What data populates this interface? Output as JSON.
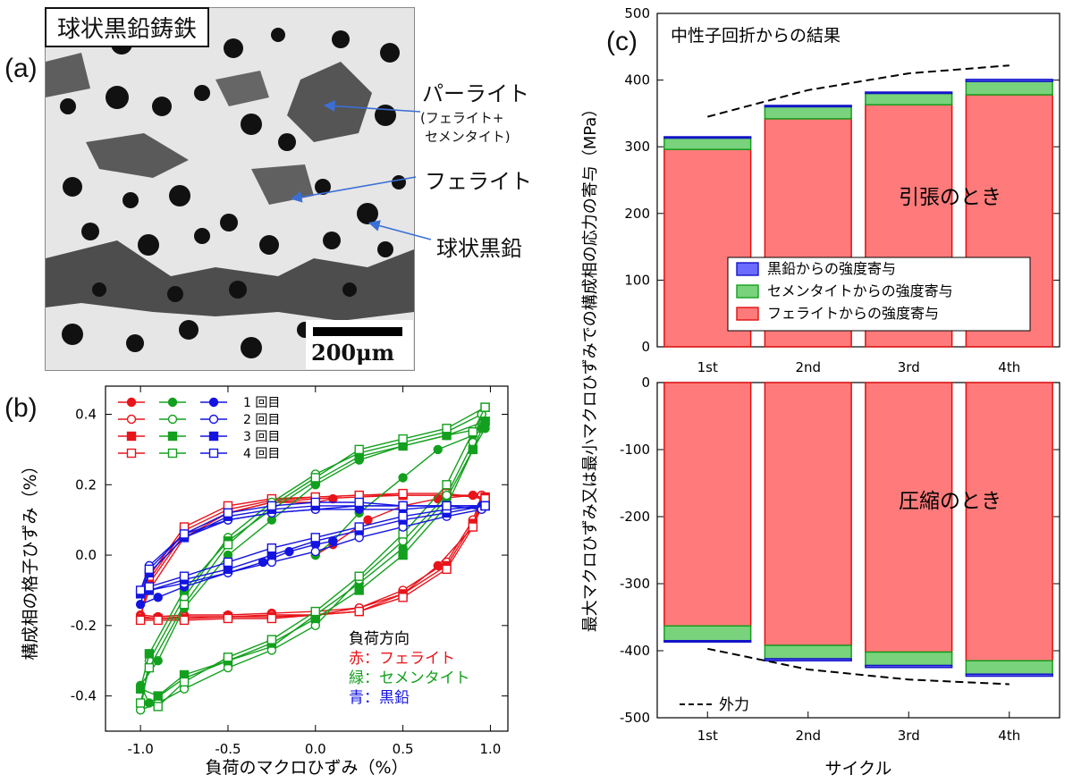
{
  "panel_a": {
    "label": "(a)",
    "title": "球状黒鉛鋳鉄",
    "scale_bar": "200μm",
    "annotations": {
      "pearlite": "パーライト",
      "pearlite_detail_1": "(フェライト+",
      "pearlite_detail_2": "セメンタイト)",
      "ferrite": "フェライト",
      "graphite": "球状黒鉛"
    }
  },
  "panel_b": {
    "label": "(b)",
    "load_direction_title": "負荷方向",
    "phase_legend": [
      {
        "text": "赤：フェライト",
        "color": "#e8141b"
      },
      {
        "text": "緑：セメンタイト",
        "color": "#13a01e"
      },
      {
        "text": "青：黒鉛",
        "color": "#1414e0"
      }
    ]
  },
  "panel_c": {
    "label": "(c)",
    "title_text": "中性子回折からの結果",
    "tension_label": "引張のとき",
    "compression_label": "圧縮のとき",
    "external_force_label": "外力"
  },
  "chart_data": [
    {
      "type": "line",
      "xlabel": "負荷のマクロひずみ（%）",
      "ylabel": "構成相の格子ひずみ（%）",
      "xlim": [
        -1.2,
        1.1
      ],
      "ylim": [
        -0.5,
        0.48
      ],
      "xticks": [
        -1.0,
        -0.5,
        0.0,
        0.5,
        1.0
      ],
      "xtick_labels": [
        "-1.0",
        "-0.5",
        "0.0",
        "0.5",
        "1.0"
      ],
      "yticks": [
        -0.4,
        -0.2,
        0.0,
        0.2,
        0.4
      ],
      "ytick_labels": [
        "-0.4",
        "-0.2",
        "0.0",
        "0.2",
        "0.4"
      ],
      "cycle_legend": [
        "1 回目",
        "2 回目",
        "3 回目",
        "4 回目"
      ],
      "colors": {
        "ferrite": "#e8141b",
        "cementite": "#13a01e",
        "graphite": "#1414e0"
      },
      "series": [
        {
          "phase": "ferrite",
          "cycle": 1,
          "marker": "circle",
          "filled": true,
          "x": [
            0.0,
            0.1,
            0.3,
            0.5,
            0.7,
            0.9,
            0.95,
            0.9,
            0.7,
            0.5,
            0.25,
            0.0,
            -0.25,
            -0.5,
            -0.75,
            -0.9,
            -1.0,
            -0.95,
            -0.75,
            -0.5,
            -0.25,
            0.0,
            0.1
          ],
          "y": [
            0.0,
            0.03,
            0.1,
            0.14,
            0.16,
            0.17,
            0.17,
            0.08,
            -0.03,
            -0.11,
            -0.15,
            -0.16,
            -0.165,
            -0.17,
            -0.17,
            -0.175,
            -0.17,
            -0.1,
            0.05,
            0.12,
            0.15,
            0.15,
            0.16
          ]
        },
        {
          "phase": "ferrite",
          "cycle": 2,
          "marker": "circle",
          "filled": false,
          "x": [
            0.95,
            0.9,
            0.75,
            0.5,
            0.25,
            0.0,
            -0.25,
            -0.5,
            -0.75,
            -0.9,
            -1.0,
            -0.95,
            -0.75,
            -0.5,
            -0.25,
            0.0,
            0.25,
            0.5,
            0.75,
            0.95
          ],
          "y": [
            0.17,
            0.1,
            -0.02,
            -0.1,
            -0.15,
            -0.17,
            -0.17,
            -0.175,
            -0.175,
            -0.18,
            -0.175,
            -0.08,
            0.06,
            0.12,
            0.15,
            0.16,
            0.165,
            0.17,
            0.17,
            0.17
          ]
        },
        {
          "phase": "ferrite",
          "cycle": 3,
          "marker": "square",
          "filled": true,
          "x": [
            0.97,
            0.9,
            0.75,
            0.5,
            0.25,
            0.0,
            -0.25,
            -0.5,
            -0.75,
            -0.9,
            -1.0,
            -0.95,
            -0.75,
            -0.5,
            -0.25,
            0.0,
            0.25,
            0.5,
            0.75,
            0.97
          ],
          "y": [
            0.165,
            0.09,
            -0.03,
            -0.11,
            -0.16,
            -0.17,
            -0.175,
            -0.175,
            -0.18,
            -0.18,
            -0.18,
            -0.07,
            0.07,
            0.13,
            0.155,
            0.165,
            0.17,
            0.17,
            0.17,
            0.165
          ]
        },
        {
          "phase": "ferrite",
          "cycle": 4,
          "marker": "square",
          "filled": false,
          "x": [
            0.97,
            0.9,
            0.75,
            0.5,
            0.25,
            0.0,
            -0.25,
            -0.5,
            -0.75,
            -0.9,
            -1.0,
            -0.95,
            -0.75,
            -0.5,
            -0.25,
            0.0,
            0.25,
            0.5,
            0.75,
            0.97
          ],
          "y": [
            0.16,
            0.08,
            -0.04,
            -0.12,
            -0.16,
            -0.17,
            -0.18,
            -0.18,
            -0.185,
            -0.185,
            -0.185,
            -0.06,
            0.08,
            0.14,
            0.16,
            0.165,
            0.17,
            0.175,
            0.175,
            0.16
          ]
        },
        {
          "phase": "cementite",
          "cycle": 1,
          "marker": "circle",
          "filled": true,
          "x": [
            0.0,
            0.1,
            0.25,
            0.5,
            0.7,
            0.9,
            0.97,
            0.9,
            0.75,
            0.5,
            0.25,
            0.0,
            -0.25,
            -0.5,
            -0.75,
            -0.95,
            -1.0,
            -0.9,
            -0.75,
            -0.5,
            -0.25,
            0.0,
            0.25,
            0.5,
            0.75,
            0.95
          ],
          "y": [
            0.0,
            0.04,
            0.12,
            0.22,
            0.3,
            0.34,
            0.36,
            0.3,
            0.16,
            0.02,
            -0.08,
            -0.17,
            -0.26,
            -0.3,
            -0.35,
            -0.42,
            -0.37,
            -0.3,
            -0.15,
            0.0,
            0.1,
            0.2,
            0.27,
            0.31,
            0.34,
            0.36
          ]
        },
        {
          "phase": "cementite",
          "cycle": 2,
          "marker": "circle",
          "filled": false,
          "x": [
            0.95,
            0.9,
            0.75,
            0.5,
            0.25,
            0.0,
            -0.25,
            -0.5,
            -0.75,
            -0.9,
            -1.0,
            -0.95,
            -0.75,
            -0.5,
            -0.25,
            0.0,
            0.25,
            0.5,
            0.75,
            0.95
          ],
          "y": [
            0.4,
            0.32,
            0.17,
            0.04,
            -0.07,
            -0.2,
            -0.27,
            -0.32,
            -0.38,
            -0.42,
            -0.44,
            -0.3,
            -0.12,
            0.05,
            0.15,
            0.23,
            0.29,
            0.32,
            0.35,
            0.4
          ]
        },
        {
          "phase": "cementite",
          "cycle": 3,
          "marker": "square",
          "filled": true,
          "x": [
            0.97,
            0.9,
            0.75,
            0.5,
            0.25,
            0.0,
            -0.25,
            -0.5,
            -0.75,
            -0.9,
            -1.0,
            -0.95,
            -0.75,
            -0.5,
            -0.25,
            0.0,
            0.25,
            0.5,
            0.75,
            0.97
          ],
          "y": [
            0.38,
            0.3,
            0.14,
            0.0,
            -0.1,
            -0.18,
            -0.25,
            -0.3,
            -0.34,
            -0.4,
            -0.38,
            -0.28,
            -0.1,
            0.04,
            0.13,
            0.21,
            0.28,
            0.31,
            0.34,
            0.38
          ]
        },
        {
          "phase": "cementite",
          "cycle": 4,
          "marker": "square",
          "filled": false,
          "x": [
            0.97,
            0.9,
            0.75,
            0.5,
            0.25,
            0.0,
            -0.25,
            -0.5,
            -0.75,
            -0.9,
            -1.0,
            -0.95,
            -0.75,
            -0.5,
            -0.25,
            0.0,
            0.25,
            0.5,
            0.75,
            0.97
          ],
          "y": [
            0.42,
            0.35,
            0.2,
            0.06,
            -0.06,
            -0.16,
            -0.24,
            -0.29,
            -0.36,
            -0.43,
            -0.42,
            -0.32,
            -0.14,
            0.03,
            0.14,
            0.22,
            0.3,
            0.33,
            0.36,
            0.42
          ]
        },
        {
          "phase": "graphite",
          "cycle": 1,
          "marker": "circle",
          "filled": true,
          "x": [
            0.1,
            0.0,
            -0.15,
            -0.3,
            -0.5,
            -0.75,
            -0.9,
            -1.0,
            -0.95,
            -0.75,
            -0.5,
            -0.25,
            0.0,
            0.25,
            0.5,
            0.75,
            0.95
          ],
          "y": [
            0.04,
            0.03,
            0.01,
            -0.02,
            -0.05,
            -0.09,
            -0.12,
            -0.14,
            -0.05,
            0.05,
            0.1,
            0.12,
            0.13,
            0.13,
            0.13,
            0.14,
            0.14
          ]
        },
        {
          "phase": "graphite",
          "cycle": 2,
          "marker": "circle",
          "filled": false,
          "x": [
            0.95,
            0.75,
            0.5,
            0.25,
            0.0,
            -0.25,
            -0.5,
            -0.75,
            -0.95,
            -1.0,
            -0.95,
            -0.75,
            -0.5,
            -0.25,
            0.0,
            0.25,
            0.5,
            0.75,
            0.95
          ],
          "y": [
            0.13,
            0.11,
            0.08,
            0.05,
            0.01,
            -0.02,
            -0.05,
            -0.08,
            -0.1,
            -0.1,
            -0.03,
            0.06,
            0.1,
            0.12,
            0.13,
            0.14,
            0.14,
            0.14,
            0.13
          ]
        },
        {
          "phase": "graphite",
          "cycle": 3,
          "marker": "square",
          "filled": true,
          "x": [
            0.97,
            0.75,
            0.5,
            0.25,
            0.0,
            -0.25,
            -0.5,
            -0.75,
            -0.95,
            -1.0,
            -0.95,
            -0.75,
            -0.5,
            -0.25,
            0.0,
            0.25,
            0.5,
            0.75,
            0.97
          ],
          "y": [
            0.14,
            0.12,
            0.1,
            0.07,
            0.04,
            0.0,
            -0.04,
            -0.07,
            -0.1,
            -0.11,
            -0.05,
            0.05,
            0.11,
            0.13,
            0.14,
            0.14,
            0.14,
            0.14,
            0.14
          ]
        },
        {
          "phase": "graphite",
          "cycle": 4,
          "marker": "square",
          "filled": false,
          "x": [
            0.97,
            0.75,
            0.5,
            0.25,
            0.0,
            -0.25,
            -0.5,
            -0.75,
            -0.95,
            -1.0,
            -0.95,
            -0.75,
            -0.5,
            -0.25,
            0.0,
            0.25,
            0.5,
            0.75,
            0.97
          ],
          "y": [
            0.14,
            0.13,
            0.11,
            0.08,
            0.05,
            0.02,
            -0.02,
            -0.06,
            -0.09,
            -0.1,
            -0.04,
            0.06,
            0.12,
            0.14,
            0.15,
            0.15,
            0.14,
            0.14,
            0.14
          ]
        }
      ]
    },
    {
      "type": "bar",
      "stacked": true,
      "xlabel": "サイクル",
      "ylabel": "最大マクロひずみ又は最小マクロひずみでの構成相の応力の寄与（MPa）",
      "categories": [
        "1st",
        "2nd",
        "3rd",
        "4th"
      ],
      "ylim": [
        -500,
        500
      ],
      "yticks": [
        -500,
        -400,
        -300,
        -200,
        -100,
        0,
        100,
        200,
        300,
        400,
        500
      ],
      "ytick_labels": [
        "-500",
        "-400",
        "-300",
        "-200",
        "-100",
        "0",
        "100",
        "200",
        "300",
        "400",
        "500"
      ],
      "legend_position": "center-right",
      "tension": {
        "series": [
          {
            "name": "フェライトからの強度寄与",
            "color": "#ff7b7b",
            "edge": "#e01010",
            "values": [
              296,
              342,
              363,
              378
            ]
          },
          {
            "name": "セメンタイトからの強度寄与",
            "color": "#79d27c",
            "edge": "#13a01e",
            "values": [
              17,
              18,
              17,
              20
            ]
          },
          {
            "name": "黒鉛からの強度寄与",
            "color": "#6b6bff",
            "edge": "#1414c8",
            "values": [
              2,
              2,
              2,
              3
            ]
          }
        ],
        "external_force": {
          "x": [
            0.5,
            1.5,
            2.5,
            3.5
          ],
          "y": [
            345,
            385,
            410,
            422
          ]
        }
      },
      "compression": {
        "series": [
          {
            "name": "フェライトからの強度寄与",
            "color": "#ff7b7b",
            "edge": "#e01010",
            "values": [
              -363,
              -392,
              -402,
              -415
            ]
          },
          {
            "name": "セメンタイトからの強度寄与",
            "color": "#79d27c",
            "edge": "#13a01e",
            "values": [
              -22,
              -20,
              -20,
              -20
            ]
          },
          {
            "name": "黒鉛からの強度寄与",
            "color": "#6b6bff",
            "edge": "#1414c8",
            "values": [
              -2,
              -3,
              -3,
              -3
            ]
          }
        ],
        "external_force": {
          "x": [
            0.5,
            1.5,
            2.5,
            3.5
          ],
          "y": [
            -397,
            -428,
            -443,
            -450
          ]
        }
      }
    }
  ]
}
